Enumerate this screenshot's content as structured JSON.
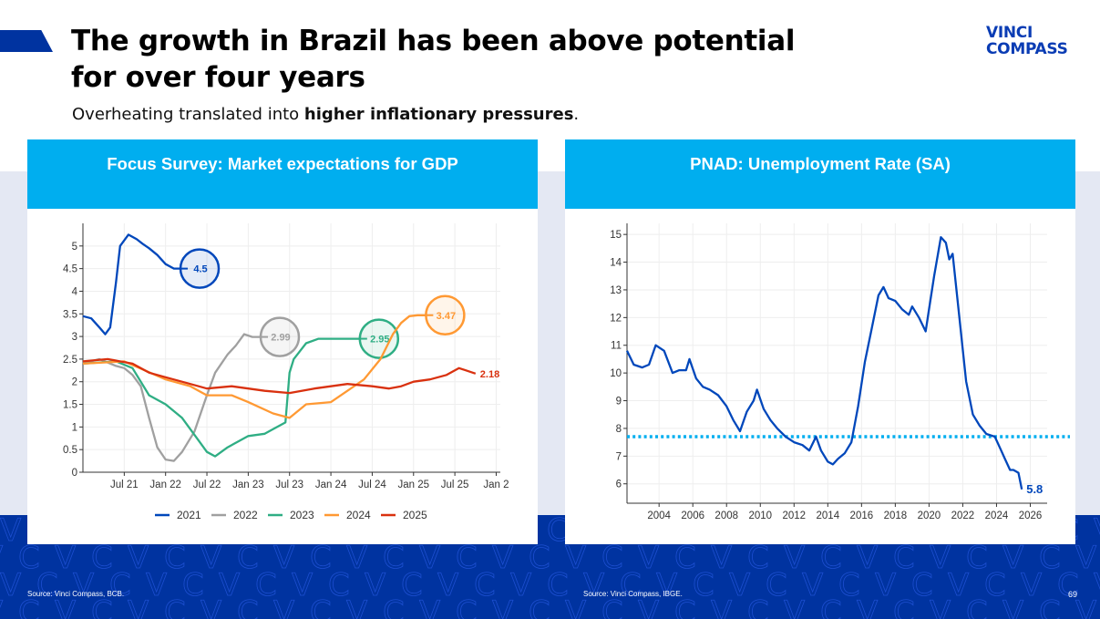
{
  "slide": {
    "title_line1": "The growth in Brazil has been above potential",
    "title_line2": "for over four years",
    "subtitle_plain": "Overheating translated into ",
    "subtitle_bold": "higher inflationary pressures",
    "subtitle_end": ".",
    "logo_line1": "VINCI",
    "logo_line2": "COMPASS",
    "page_number": "69",
    "colors": {
      "brand_dark": "#0033a0",
      "brand_light": "#00aeef",
      "band_gray": "#e4e8f3"
    }
  },
  "footer": {
    "left_source": "Source: Vinci Compass, BCB.",
    "right_source": "Source: Vinci Compass, IBGE."
  },
  "chart_data": [
    {
      "type": "line",
      "title": "Focus Survey: Market expectations for GDP",
      "xlabel": "",
      "ylabel": "",
      "ylim": [
        0,
        5.5
      ],
      "yticks": [
        0,
        0.5,
        1,
        1.5,
        2,
        2.5,
        3,
        3.5,
        4,
        4.5,
        5
      ],
      "ytick_labels": [
        "0",
        "0.5",
        "1",
        "1.5",
        "2",
        "2.5",
        "3",
        "3.5",
        "4",
        "4.5",
        "5"
      ],
      "xlim": [
        2021.0,
        2026.05
      ],
      "xticks": [
        2021.5,
        2022.0,
        2022.5,
        2023.0,
        2023.5,
        2024.0,
        2024.5,
        2025.0,
        2025.5,
        2026.0
      ],
      "xtick_labels": [
        "Jul 21",
        "Jan 22",
        "Jul 22",
        "Jan 23",
        "Jul 23",
        "Jan 24",
        "Jul 24",
        "Jan 25",
        "Jul 25",
        "Jan 2"
      ],
      "grid": true,
      "legend_position": "bottom",
      "series": [
        {
          "name": "2021",
          "color": "#0047bb",
          "final_label": "4.5",
          "label_style": "circle",
          "x": [
            2021.0,
            2021.1,
            2021.2,
            2021.27,
            2021.33,
            2021.4,
            2021.45,
            2021.55,
            2021.65,
            2021.72,
            2021.8,
            2021.9,
            2022.0,
            2022.1,
            2022.18
          ],
          "y": [
            3.45,
            3.4,
            3.2,
            3.05,
            3.2,
            4.2,
            5.0,
            5.25,
            5.15,
            5.05,
            4.95,
            4.8,
            4.6,
            4.5,
            4.5
          ]
        },
        {
          "name": "2022",
          "color": "#a0a0a0",
          "final_label": "2.99",
          "label_style": "circle",
          "x": [
            2021.0,
            2021.2,
            2021.4,
            2021.5,
            2021.6,
            2021.7,
            2021.8,
            2021.9,
            2022.0,
            2022.1,
            2022.2,
            2022.35,
            2022.5,
            2022.6,
            2022.75,
            2022.85,
            2022.95,
            2023.05,
            2023.15
          ],
          "y": [
            2.4,
            2.5,
            2.35,
            2.3,
            2.15,
            1.9,
            1.2,
            0.55,
            0.28,
            0.25,
            0.45,
            0.9,
            1.7,
            2.2,
            2.6,
            2.8,
            3.05,
            2.99,
            2.99
          ]
        },
        {
          "name": "2023",
          "color": "#2fae84",
          "final_label": "2.95",
          "label_style": "circle",
          "x": [
            2021.0,
            2021.4,
            2021.6,
            2021.8,
            2022.0,
            2022.2,
            2022.4,
            2022.5,
            2022.6,
            2022.75,
            2023.0,
            2023.2,
            2023.3,
            2023.45,
            2023.5,
            2023.55,
            2023.7,
            2023.85,
            2024.0,
            2024.2,
            2024.35
          ],
          "y": [
            2.4,
            2.45,
            2.3,
            1.7,
            1.5,
            1.2,
            0.7,
            0.45,
            0.35,
            0.55,
            0.8,
            0.85,
            0.95,
            1.1,
            2.2,
            2.5,
            2.85,
            2.95,
            2.95,
            2.95,
            2.95
          ]
        },
        {
          "name": "2024",
          "color": "#ff9933",
          "final_label": "3.47",
          "label_style": "circle",
          "x": [
            2021.0,
            2021.5,
            2022.0,
            2022.3,
            2022.5,
            2022.8,
            2023.0,
            2023.3,
            2023.5,
            2023.7,
            2024.0,
            2024.2,
            2024.4,
            2024.6,
            2024.75,
            2024.85,
            2024.95,
            2025.05,
            2025.15
          ],
          "y": [
            2.4,
            2.45,
            2.05,
            1.9,
            1.7,
            1.7,
            1.55,
            1.3,
            1.2,
            1.5,
            1.55,
            1.8,
            2.05,
            2.5,
            3.05,
            3.3,
            3.45,
            3.47,
            3.47
          ]
        },
        {
          "name": "2025",
          "color": "#d9310f",
          "final_label": "2.18",
          "label_style": "text",
          "x": [
            2021.0,
            2021.3,
            2021.6,
            2021.8,
            2022.0,
            2022.3,
            2022.5,
            2022.8,
            2023.0,
            2023.2,
            2023.5,
            2023.8,
            2024.0,
            2024.2,
            2024.5,
            2024.7,
            2024.85,
            2025.0,
            2025.2,
            2025.4,
            2025.55,
            2025.75
          ],
          "y": [
            2.45,
            2.5,
            2.4,
            2.2,
            2.1,
            1.95,
            1.85,
            1.9,
            1.85,
            1.8,
            1.75,
            1.85,
            1.9,
            1.95,
            1.9,
            1.85,
            1.9,
            2.0,
            2.05,
            2.15,
            2.3,
            2.18
          ]
        }
      ]
    },
    {
      "type": "line",
      "title": "PNAD: Unemployment Rate (SA)",
      "xlabel": "",
      "ylabel": "",
      "ylim": [
        5.3,
        15.4
      ],
      "yticks": [
        6,
        7,
        8,
        9,
        10,
        11,
        12,
        13,
        14,
        15
      ],
      "ytick_labels": [
        "6",
        "7",
        "8",
        "9",
        "10",
        "11",
        "12",
        "13",
        "14",
        "15"
      ],
      "xlim": [
        2002.1,
        2027.0
      ],
      "xticks": [
        2004,
        2006,
        2008,
        2010,
        2012,
        2014,
        2016,
        2018,
        2020,
        2022,
        2024,
        2026
      ],
      "xtick_labels": [
        "2004",
        "2006",
        "2008",
        "2010",
        "2012",
        "2014",
        "2016",
        "2018",
        "2020",
        "2022",
        "2024",
        "2026"
      ],
      "grid": true,
      "legend_position": "none",
      "reference_line": {
        "value": 7.7,
        "color": "#00aeef",
        "style": "dotted"
      },
      "series": [
        {
          "name": "Unemployment Rate (SA)",
          "color": "#0047bb",
          "final_label": "5.8",
          "x": [
            2002.1,
            2002.5,
            2003.0,
            2003.4,
            2003.8,
            2004.3,
            2004.8,
            2005.2,
            2005.6,
            2005.8,
            2006.2,
            2006.6,
            2007.0,
            2007.5,
            2008.0,
            2008.4,
            2008.8,
            2009.2,
            2009.6,
            2009.8,
            2010.2,
            2010.6,
            2011.0,
            2011.5,
            2012.0,
            2012.5,
            2012.9,
            2013.3,
            2013.6,
            2014.0,
            2014.3,
            2014.6,
            2015.0,
            2015.4,
            2015.8,
            2016.2,
            2016.6,
            2017.0,
            2017.3,
            2017.6,
            2018.0,
            2018.4,
            2018.8,
            2019.0,
            2019.4,
            2019.8,
            2020.0,
            2020.3,
            2020.7,
            2021.0,
            2021.2,
            2021.4,
            2021.8,
            2022.2,
            2022.6,
            2023.0,
            2023.4,
            2023.9,
            2024.2,
            2024.5,
            2024.8,
            2025.0,
            2025.3,
            2025.5
          ],
          "y": [
            10.8,
            10.3,
            10.2,
            10.3,
            11.0,
            10.8,
            10.0,
            10.1,
            10.1,
            10.5,
            9.8,
            9.5,
            9.4,
            9.2,
            8.8,
            8.3,
            7.9,
            8.6,
            9.0,
            9.4,
            8.7,
            8.3,
            8.0,
            7.7,
            7.5,
            7.4,
            7.2,
            7.7,
            7.2,
            6.8,
            6.7,
            6.9,
            7.1,
            7.5,
            8.8,
            10.4,
            11.6,
            12.8,
            13.1,
            12.7,
            12.6,
            12.3,
            12.1,
            12.4,
            12.0,
            11.5,
            12.3,
            13.5,
            14.9,
            14.7,
            14.1,
            14.3,
            12.0,
            9.7,
            8.5,
            8.1,
            7.8,
            7.7,
            7.3,
            6.9,
            6.5,
            6.5,
            6.4,
            5.8
          ]
        }
      ]
    }
  ]
}
